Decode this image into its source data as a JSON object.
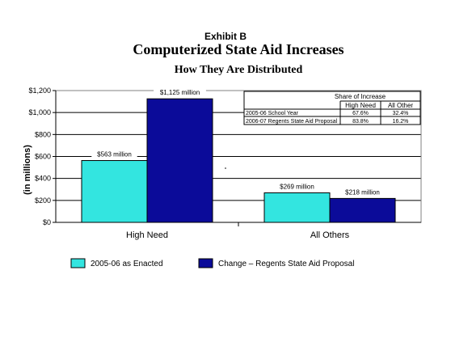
{
  "exhibit": "Exhibit B",
  "chart_data": {
    "type": "bar",
    "title": "Computerized State Aid Increases",
    "subtitle": "How They Are Distributed",
    "ylabel": "(in millions)",
    "ylim": [
      0,
      1200
    ],
    "yticks": [
      "$0",
      "$200",
      "$400",
      "$600",
      "$800",
      "$1,000",
      "$1,200"
    ],
    "categories": [
      "High Need",
      "All Others"
    ],
    "grid": true,
    "legend_position": "bottom",
    "series": [
      {
        "name": "2005-06 as Enacted",
        "color": "#33E5E0",
        "values": [
          563,
          269
        ],
        "labels": [
          "$563 million",
          "$269 million"
        ]
      },
      {
        "name": "Change – Regents State Aid Proposal",
        "color": "#0B0B99",
        "values": [
          1125,
          218
        ],
        "labels": [
          "$1,125 million",
          "$218 million"
        ]
      }
    ],
    "share_table": {
      "title": "Share of Increase",
      "columns": [
        "High Need",
        "All Other"
      ],
      "rows": [
        {
          "label": "2005-06 School Year",
          "values": [
            "67.6%",
            "32.4%"
          ]
        },
        {
          "label": "2006-07 Regents State Aid Proposal",
          "values": [
            "83.8%",
            "16.2%"
          ]
        }
      ]
    }
  }
}
